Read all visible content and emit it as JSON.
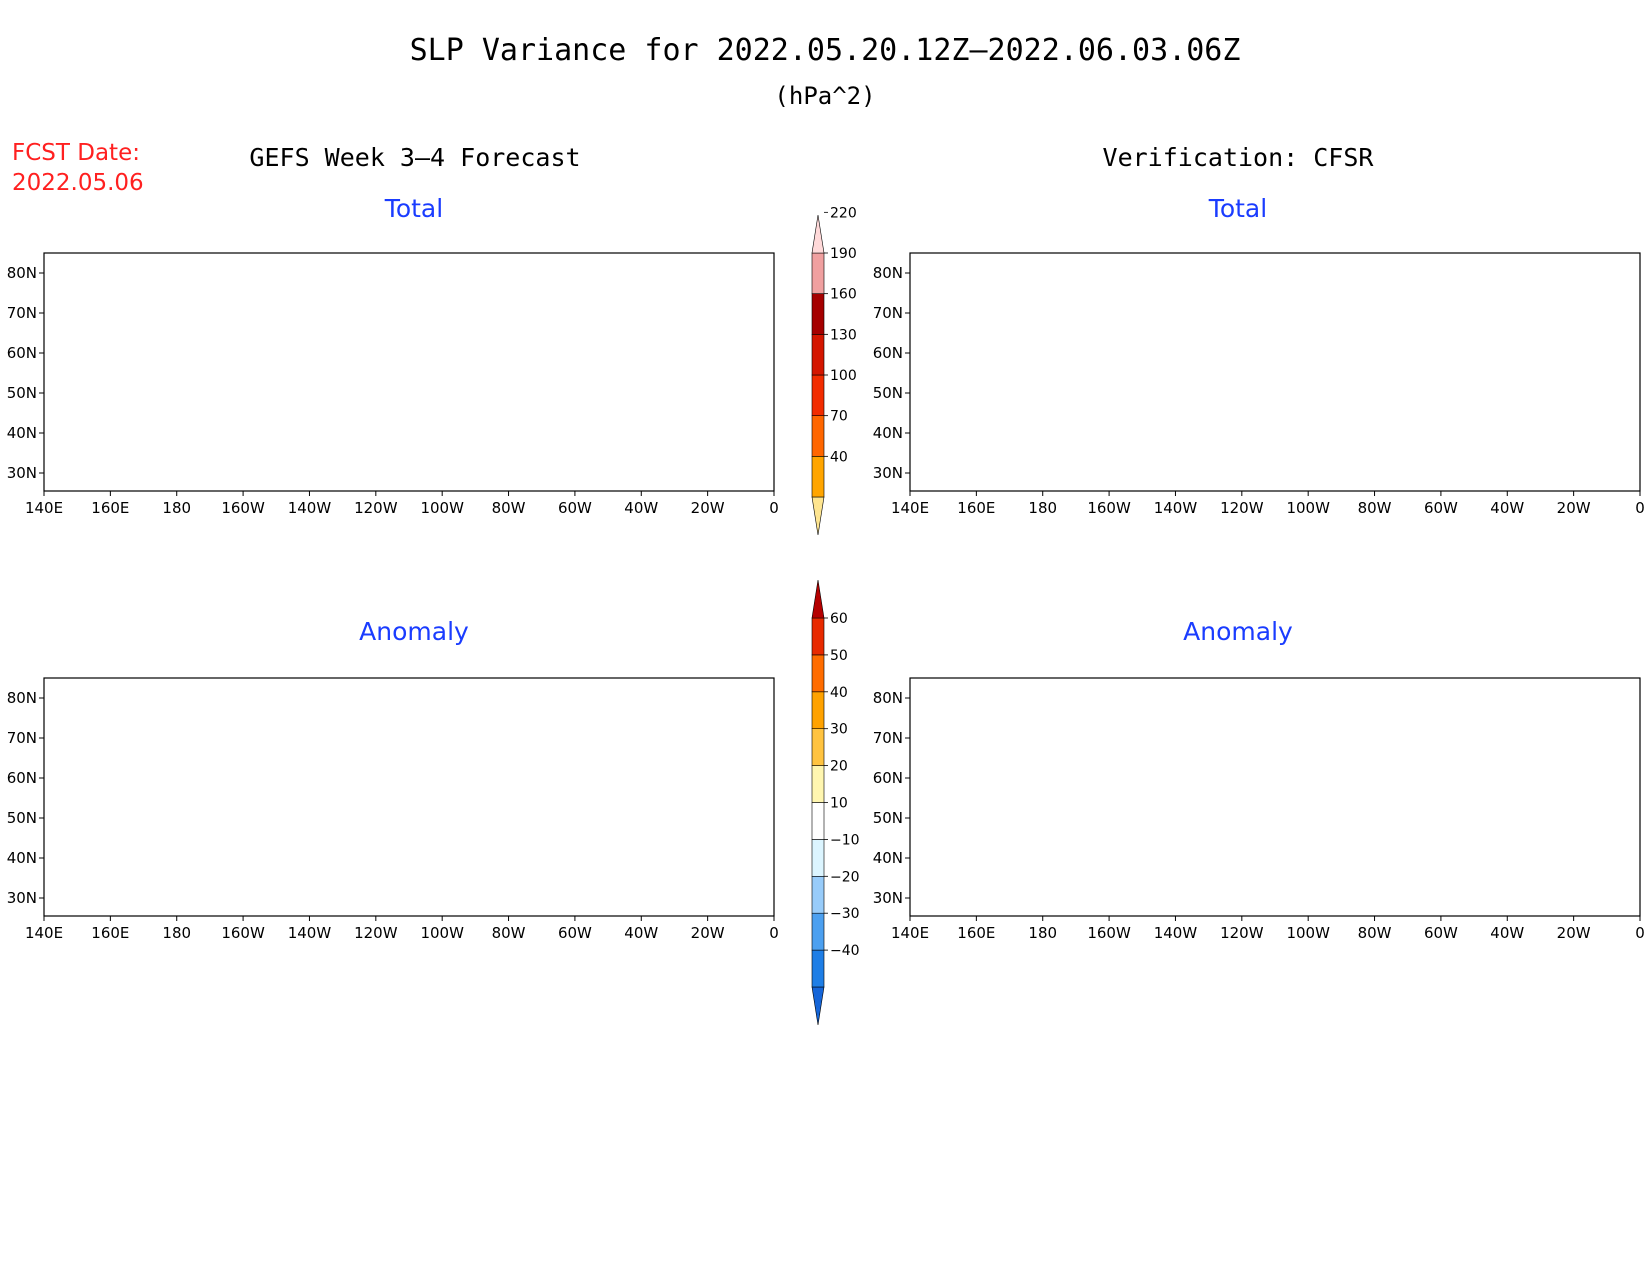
{
  "title": "SLP Variance for 2022.05.20.12Z–2022.06.03.06Z",
  "units": "(hPa^2)",
  "fcst_label": "FCST Date:",
  "fcst_date": "2022.05.06",
  "columns": {
    "left": "GEFS Week 3–4 Forecast",
    "right": "Verification: CFSR"
  },
  "panels": {
    "top_left": "Total",
    "top_right": "Total",
    "bottom_left": "Anomaly",
    "bottom_right": "Anomaly"
  },
  "lat_labels": [
    "80N",
    "70N",
    "60N",
    "50N",
    "40N",
    "30N"
  ],
  "lon_labels": [
    "140E",
    "160E",
    "180",
    "160W",
    "140W",
    "120W",
    "100W",
    "80W",
    "60W",
    "40W",
    "20W",
    "0"
  ],
  "colorbars": {
    "total": {
      "levels": [
        "40",
        "70",
        "100",
        "130",
        "160",
        "190",
        "220"
      ],
      "colors": [
        "#fee590",
        "#ffa500",
        "#ff6600",
        "#f22c00",
        "#d41600",
        "#a50000",
        "#f0a0a0",
        "#ffd9d9"
      ]
    },
    "anomaly": {
      "levels": [
        "−40",
        "−30",
        "−20",
        "−10",
        "10",
        "20",
        "30",
        "40",
        "50",
        "60"
      ],
      "colors": [
        "#1565d8",
        "#1e7ee6",
        "#4ca0f0",
        "#98ccfa",
        "#dcf5ff",
        "#ffffff",
        "#fff6b0",
        "#ffc340",
        "#ffa200",
        "#ff6c00",
        "#e82a00",
        "#b40000"
      ]
    }
  }
}
